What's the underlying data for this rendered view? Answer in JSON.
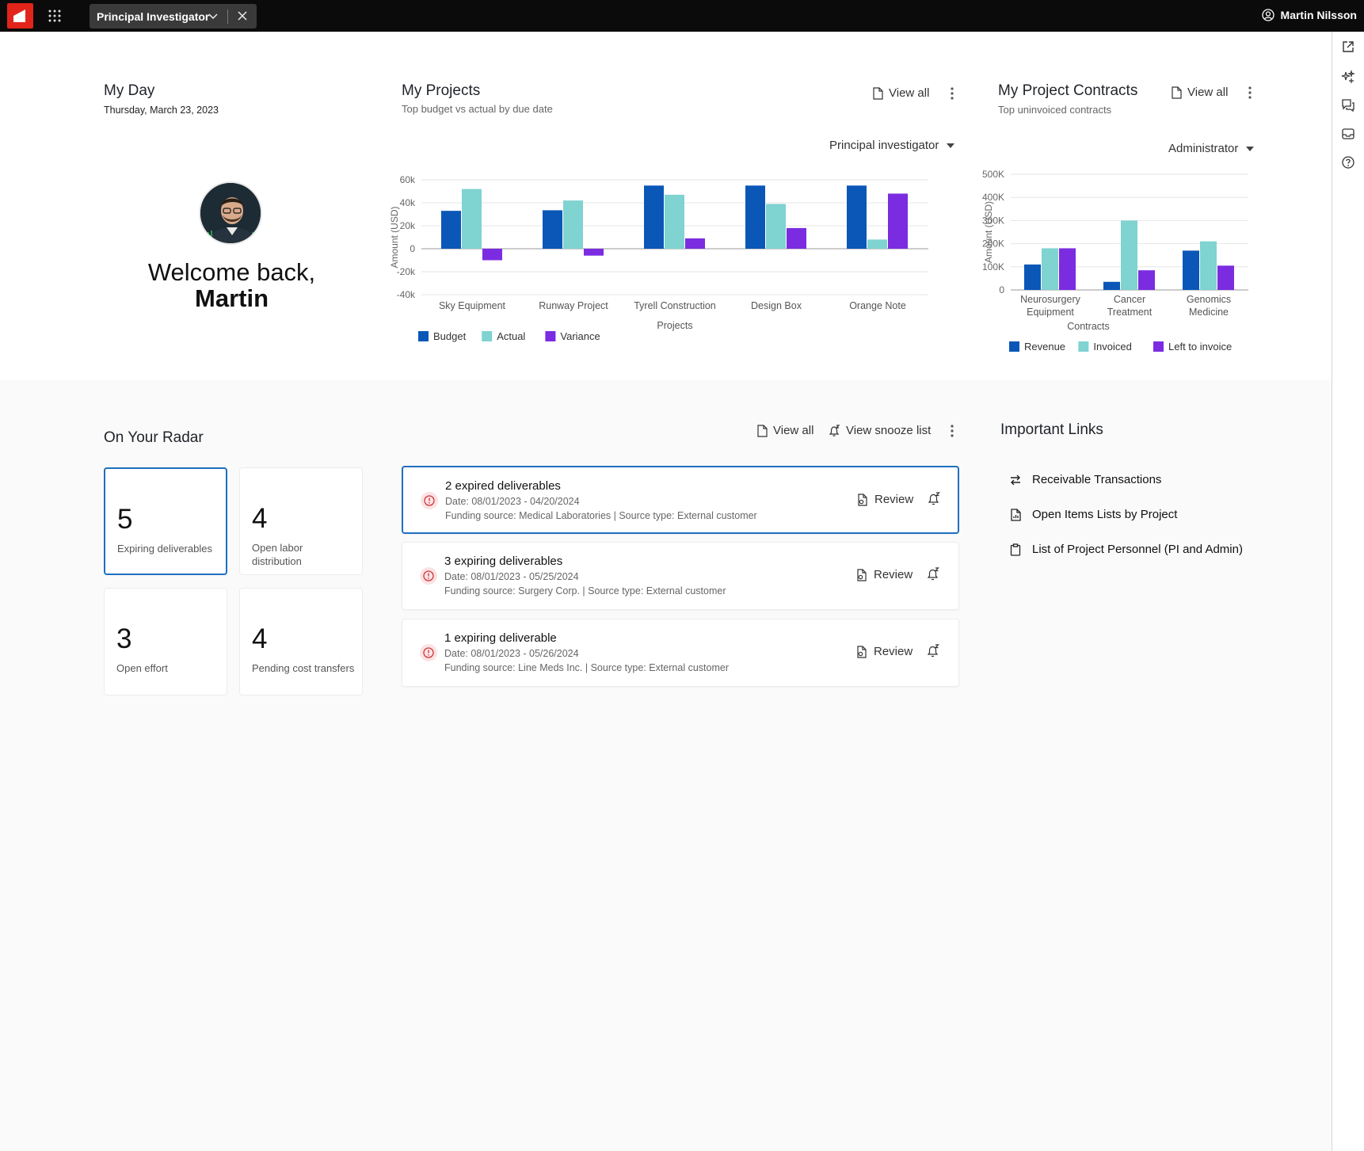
{
  "app": {
    "role_tab": "Principal Investigator",
    "user_name": "Martin Nilsson"
  },
  "my_day": {
    "title": "My Day",
    "date": "Thursday, March 23, 2023",
    "welcome_line1": "Welcome back,",
    "welcome_name": "Martin"
  },
  "projects": {
    "title": "My Projects",
    "subtitle": "Top budget vs actual by due date",
    "view_all": "View all",
    "filter": "Principal investigator"
  },
  "contracts": {
    "title": "My Project Contracts",
    "subtitle": "Top uninvoiced contracts",
    "view_all": "View all",
    "filter": "Administrator"
  },
  "radar": {
    "title": "On Your Radar",
    "view_all": "View all",
    "snooze_list": "View snooze list",
    "tiles": [
      {
        "num": "5",
        "label": "Expiring deliverables"
      },
      {
        "num": "4",
        "label": "Open labor distribution"
      },
      {
        "num": "3",
        "label": "Open effort"
      },
      {
        "num": "4",
        "label": "Pending cost transfers"
      }
    ],
    "cards": [
      {
        "title": "2 expired deliverables",
        "date": "Date: 08/01/2023 - 04/20/2024",
        "funding": "Funding source: Medical Laboratories | Source type: External customer",
        "review": "Review"
      },
      {
        "title": "3 expiring deliverables",
        "date": "Date: 08/01/2023 - 05/25/2024",
        "funding": "Funding source: Surgery Corp. | Source type: External customer",
        "review": "Review"
      },
      {
        "title": "1 expiring deliverable",
        "date": "Date: 08/01/2023 - 05/26/2024",
        "funding": "Funding source: Line Meds Inc. | Source type: External customer",
        "review": "Review"
      }
    ]
  },
  "links": {
    "title": "Important Links",
    "items": [
      "Receivable Transactions",
      "Open Items Lists by Project",
      "List of Project Personnel (PI and Admin)"
    ]
  },
  "colors": {
    "budget": "#0b57b8",
    "actual": "#7fd3d1",
    "variance": "#7b2ce0",
    "accent": "#1f6fc0",
    "brand": "#e1251b"
  },
  "chart_data": [
    {
      "type": "bar",
      "categories": [
        "Sky Equipment",
        "Runway Project",
        "Tyrell Construction",
        "Design Box",
        "Orange Note"
      ],
      "series": [
        {
          "name": "Budget",
          "values": [
            33000,
            33500,
            55000,
            55000,
            55000
          ]
        },
        {
          "name": "Actual",
          "values": [
            52000,
            42000,
            47000,
            39000,
            8000
          ]
        },
        {
          "name": "Variance",
          "values": [
            -10000,
            -6000,
            9000,
            18000,
            48000
          ]
        }
      ],
      "ylabel": "Amount (USD)",
      "xlabel": "Projects",
      "yticks": [
        "60k",
        "40k",
        "20k",
        "0",
        "-20k",
        "-40k"
      ],
      "ylim": [
        -40000,
        60000
      ],
      "grid": true,
      "legend": "bottom"
    },
    {
      "type": "bar",
      "categories": [
        "Neurosurgery Equipment",
        "Cancer Treatment",
        "Genomics Medicine"
      ],
      "series": [
        {
          "name": "Revenue",
          "values": [
            110000,
            35000,
            170000
          ]
        },
        {
          "name": "Invoiced",
          "values": [
            180000,
            300000,
            210000
          ]
        },
        {
          "name": "Left to invoice",
          "values": [
            180000,
            85000,
            105000
          ]
        }
      ],
      "ylabel": "Amount (USD)",
      "xlabel": "Contracts",
      "yticks": [
        "500K",
        "400K",
        "300K",
        "200K",
        "100K",
        "0"
      ],
      "ylim": [
        0,
        500000
      ],
      "grid": true,
      "legend": "bottom"
    }
  ]
}
